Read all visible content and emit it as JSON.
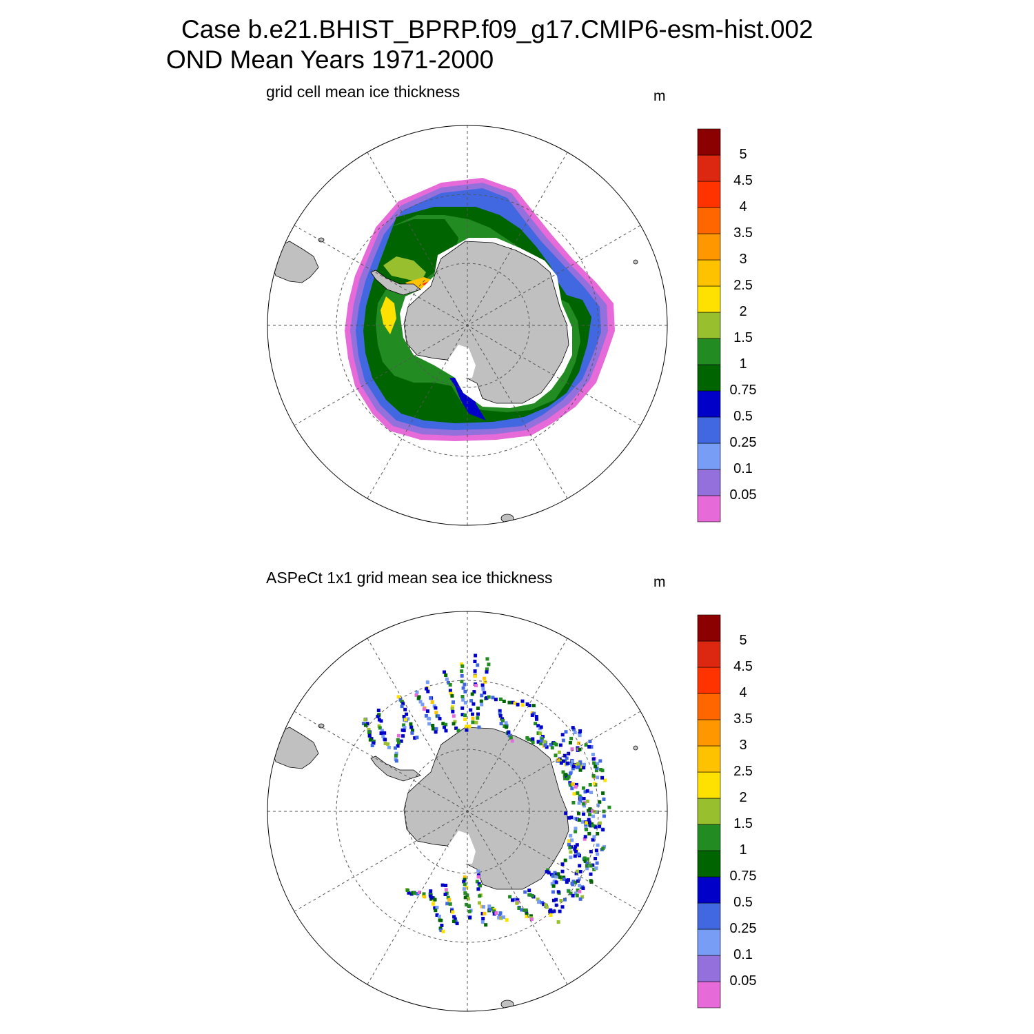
{
  "header": {
    "case_title": "Case b.e21.BHIST_BPRP.f09_g17.CMIP6-esm-hist.002",
    "season_title": "OND Mean   Years 1971-2000"
  },
  "colors": {
    "land": "#c0c0c0",
    "levels": [
      "#e66bd9",
      "#9370db",
      "#779df5",
      "#4168e1",
      "#0000c8",
      "#006400",
      "#228b22",
      "#98bf2e",
      "#ffe100",
      "#ffc200",
      "#ff9800",
      "#ff6600",
      "#ff3300",
      "#dc2810",
      "#8b0000"
    ]
  },
  "colorbar": {
    "units": "m",
    "labels": [
      "0.05",
      "0.1",
      "0.25",
      "0.5",
      "0.75",
      "1",
      "1.5",
      "2",
      "2.5",
      "3",
      "3.5",
      "4",
      "4.5",
      "5"
    ]
  },
  "panels": [
    {
      "id": "model",
      "title": "grid cell mean ice thickness",
      "units": "m"
    },
    {
      "id": "obs",
      "title": "ASPeCt 1x1 grid mean sea ice thickness",
      "units": "m"
    }
  ]
}
